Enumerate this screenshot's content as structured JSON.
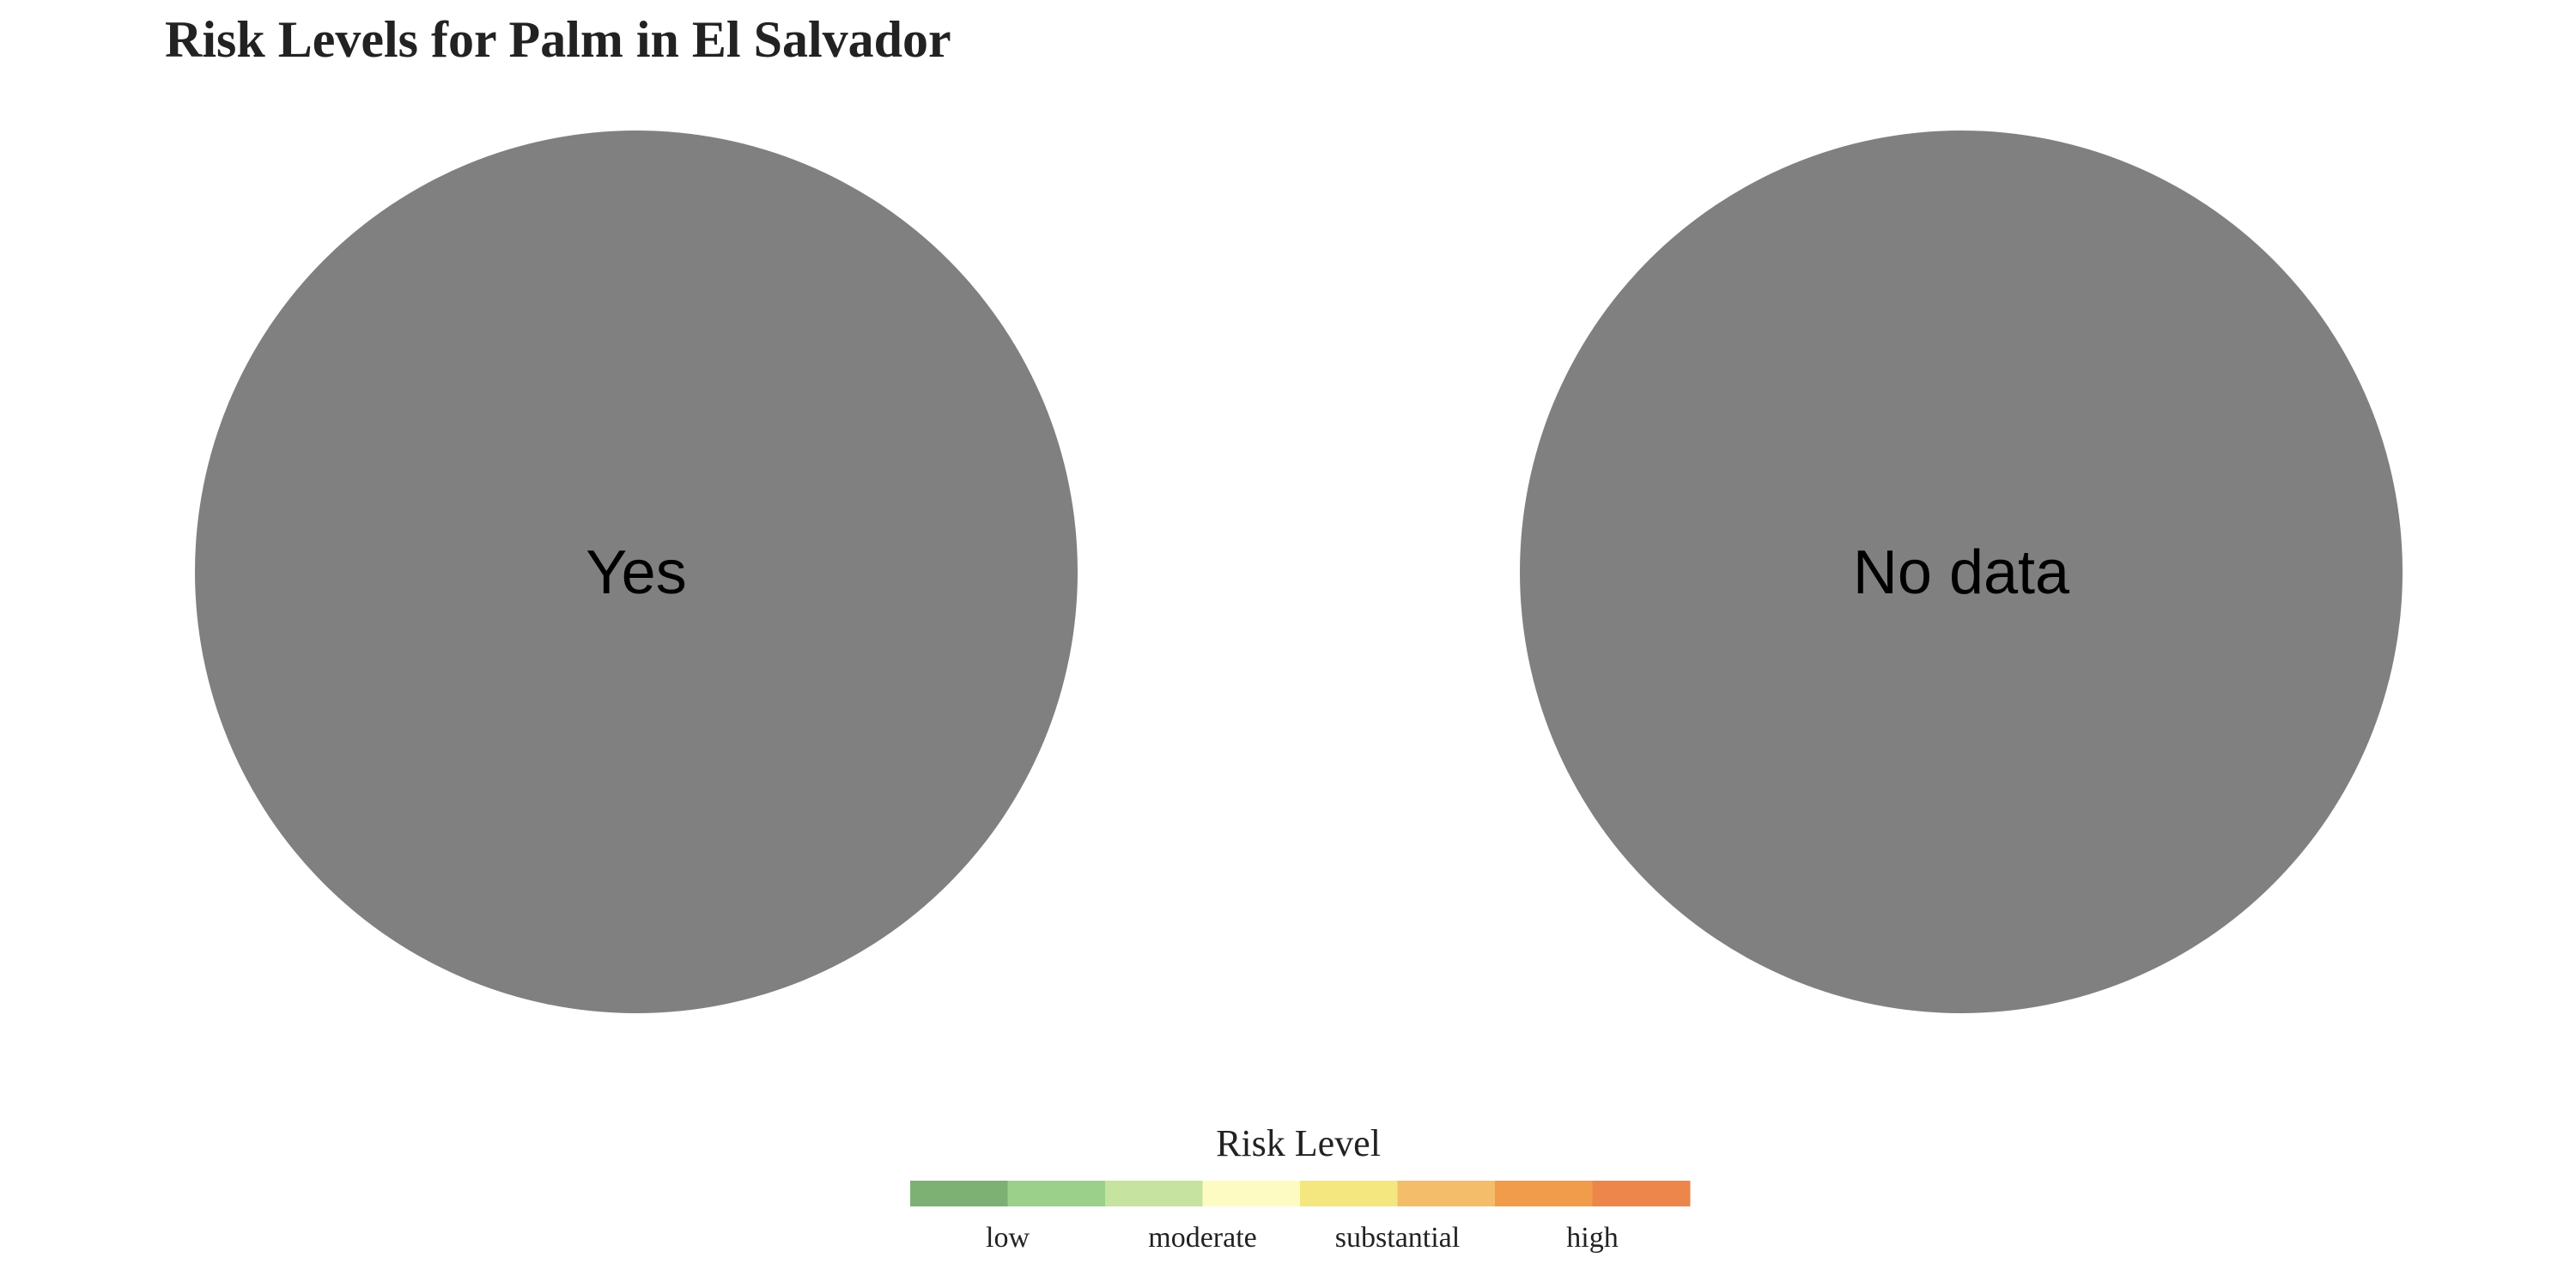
{
  "chart_data": {
    "type": "pie",
    "title": "Risk Levels for Palm in El Salvador",
    "pies": [
      {
        "slices": [
          {
            "label": "Yes",
            "value": 1,
            "color": "#808080"
          }
        ]
      },
      {
        "slices": [
          {
            "label": "No data",
            "value": 1,
            "color": "#808080"
          }
        ]
      }
    ],
    "legend": {
      "title": "Risk Level",
      "placement": "bottom-center",
      "colors": [
        "#7db174",
        "#9bd08b",
        "#c6e39f",
        "#fdfbc2",
        "#f4e77f",
        "#f4bd6a",
        "#f19c4a",
        "#ec864a"
      ],
      "ticks": [
        {
          "label": "low",
          "position": 1
        },
        {
          "label": "moderate",
          "position": 3
        },
        {
          "label": "substantial",
          "position": 5
        },
        {
          "label": "high",
          "position": 7
        }
      ]
    }
  }
}
